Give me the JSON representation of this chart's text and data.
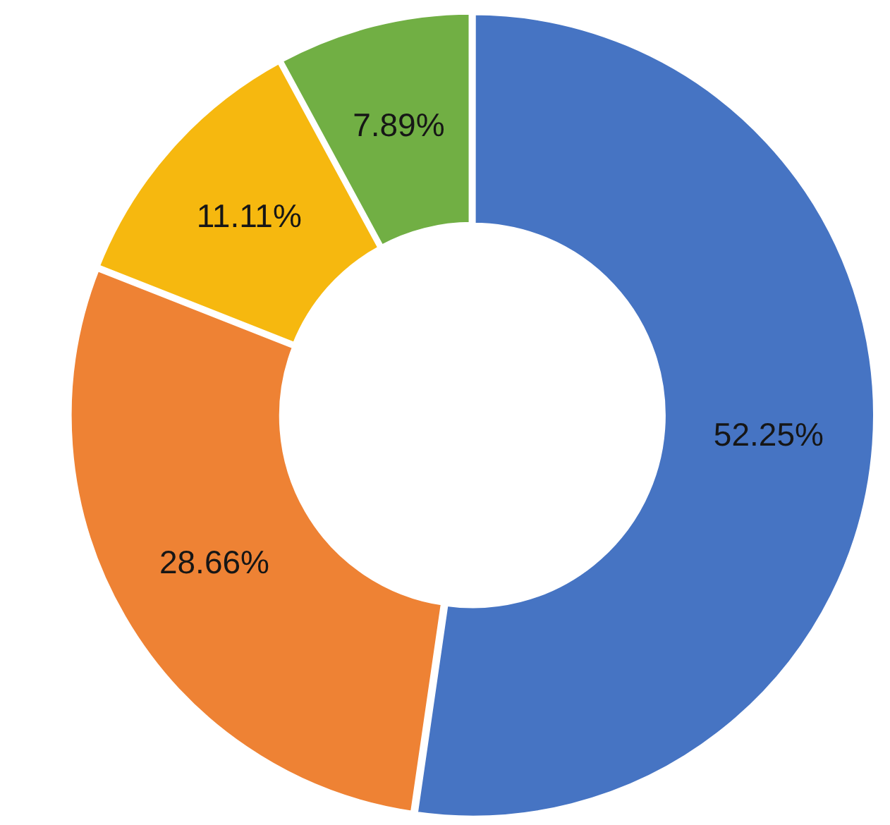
{
  "chart_data": {
    "type": "donut",
    "categories": [
      null,
      null,
      null,
      null
    ],
    "values": [
      52.25,
      28.66,
      11.11,
      7.89
    ],
    "value_labels": [
      "52.25%",
      "28.66%",
      "11.11%",
      "7.89%"
    ],
    "colors": [
      "#4674c3",
      "#ee8234",
      "#f6b80f",
      "#71af44"
    ],
    "legend": false
  }
}
